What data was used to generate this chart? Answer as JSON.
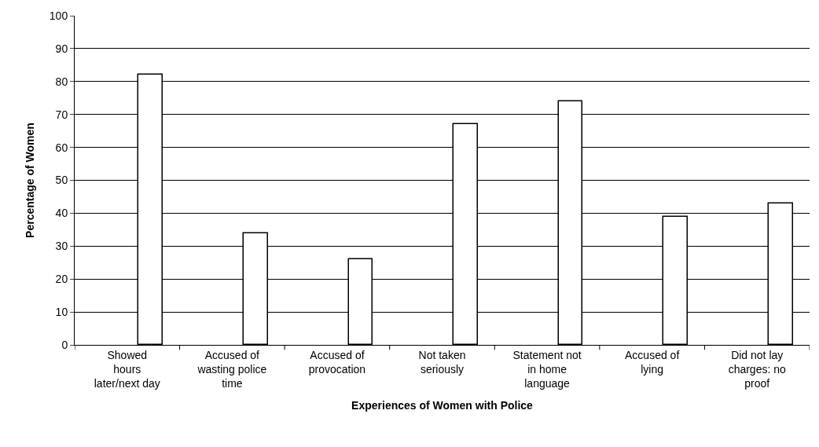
{
  "chart_data": {
    "type": "bar",
    "xlabel": "Experiences of Women with Police",
    "ylabel": "Percentage of Women",
    "categories": [
      "Showed\nhours\nlater/next day",
      "Accused of\nwasting police\ntime",
      "Accused of\nprovocation",
      "Not taken\nseriously",
      "Statement not\nin home\nlanguage",
      "Accused of\nlying",
      "Did not lay\ncharges: no\nproof"
    ],
    "values": [
      82,
      34,
      26,
      67,
      74,
      39,
      43
    ],
    "color": "#ffffff",
    "ylim": [
      0,
      100
    ],
    "yticks": [
      0,
      10,
      20,
      30,
      40,
      50,
      60,
      70,
      80,
      90,
      100
    ],
    "grid": "y"
  }
}
